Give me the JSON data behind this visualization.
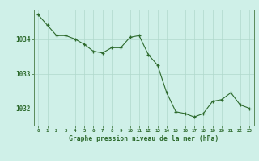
{
  "x": [
    0,
    1,
    2,
    3,
    4,
    5,
    6,
    7,
    8,
    9,
    10,
    11,
    12,
    13,
    14,
    15,
    16,
    17,
    18,
    19,
    20,
    21,
    22,
    23
  ],
  "y": [
    1034.7,
    1034.4,
    1034.1,
    1034.1,
    1034.0,
    1033.85,
    1033.65,
    1033.6,
    1033.75,
    1033.75,
    1034.05,
    1034.1,
    1033.55,
    1033.25,
    1032.45,
    1031.9,
    1031.85,
    1031.75,
    1031.85,
    1032.2,
    1032.25,
    1032.45,
    1032.1,
    1032.0
  ],
  "line_color": "#2d6a2d",
  "marker_color": "#2d6a2d",
  "bg_color": "#cff0e8",
  "grid_color": "#b0d8cc",
  "axis_color": "#5a8a5a",
  "xlabel": "Graphe pression niveau de la mer (hPa)",
  "xlabel_color": "#2d6a2d",
  "xtick_labels": [
    "0",
    "1",
    "2",
    "3",
    "4",
    "5",
    "6",
    "7",
    "8",
    "9",
    "10",
    "11",
    "12",
    "13",
    "14",
    "15",
    "16",
    "17",
    "18",
    "19",
    "20",
    "21",
    "22",
    "23"
  ],
  "ytick_values": [
    1032,
    1033,
    1034
  ],
  "ylim": [
    1031.5,
    1034.85
  ],
  "xlim": [
    -0.5,
    23.5
  ],
  "font_color": "#2d6a2d"
}
